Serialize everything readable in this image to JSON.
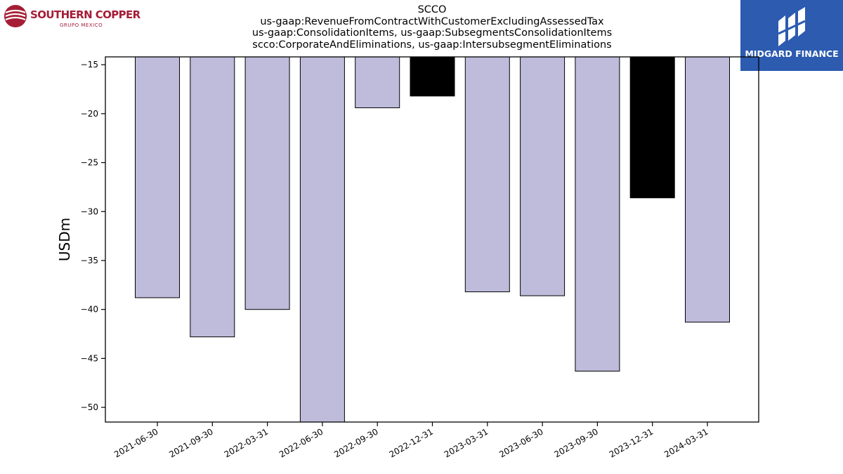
{
  "header": {
    "title_lines": [
      "SCCO",
      "us-gaap:RevenueFromContractWithCustomerExcludingAssessedTax",
      "us-gaap:ConsolidationItems, us-gaap:SubsegmentsConsolidationItems",
      "scco:CorporateAndEliminations, us-gaap:IntersubsegmentEliminations"
    ]
  },
  "logos": {
    "left": {
      "brand": "SOUTHERN COPPER",
      "sub": "GRUPO MEXICO",
      "color": "#a51d36"
    },
    "right": {
      "text": "MIDGARD FINANCE",
      "background": "#2c5bb0"
    }
  },
  "chart_data": {
    "type": "bar",
    "title": "SCCO us-gaap:RevenueFromContractWithCustomerExcludingAssessedTax us-gaap:ConsolidationItems, us-gaap:SubsegmentsConsolidationItems scco:CorporateAndEliminations, us-gaap:IntersubsegmentEliminations",
    "xlabel": "",
    "ylabel": "USDm",
    "categories": [
      "2021-06-30",
      "2021-09-30",
      "2022-03-31",
      "2022-06-30",
      "2022-09-30",
      "2022-12-31",
      "2023-03-31",
      "2023-06-30",
      "2023-09-30",
      "2023-12-31",
      "2024-03-31"
    ],
    "values": [
      -38.8,
      -42.8,
      -40.0,
      -51.6,
      -19.4,
      -18.2,
      -38.2,
      -38.6,
      -46.3,
      -28.6,
      -41.3
    ],
    "bar_colors": [
      "#bebbdb",
      "#bebbdb",
      "#bebbdb",
      "#bebbdb",
      "#bebbdb",
      "#000000",
      "#bebbdb",
      "#bebbdb",
      "#bebbdb",
      "#000000",
      "#bebbdb"
    ],
    "ylim": [
      -51.5,
      -14.2
    ],
    "yticks": [
      -15,
      -20,
      -25,
      -30,
      -35,
      -40,
      -45,
      -50
    ],
    "grid": false
  }
}
